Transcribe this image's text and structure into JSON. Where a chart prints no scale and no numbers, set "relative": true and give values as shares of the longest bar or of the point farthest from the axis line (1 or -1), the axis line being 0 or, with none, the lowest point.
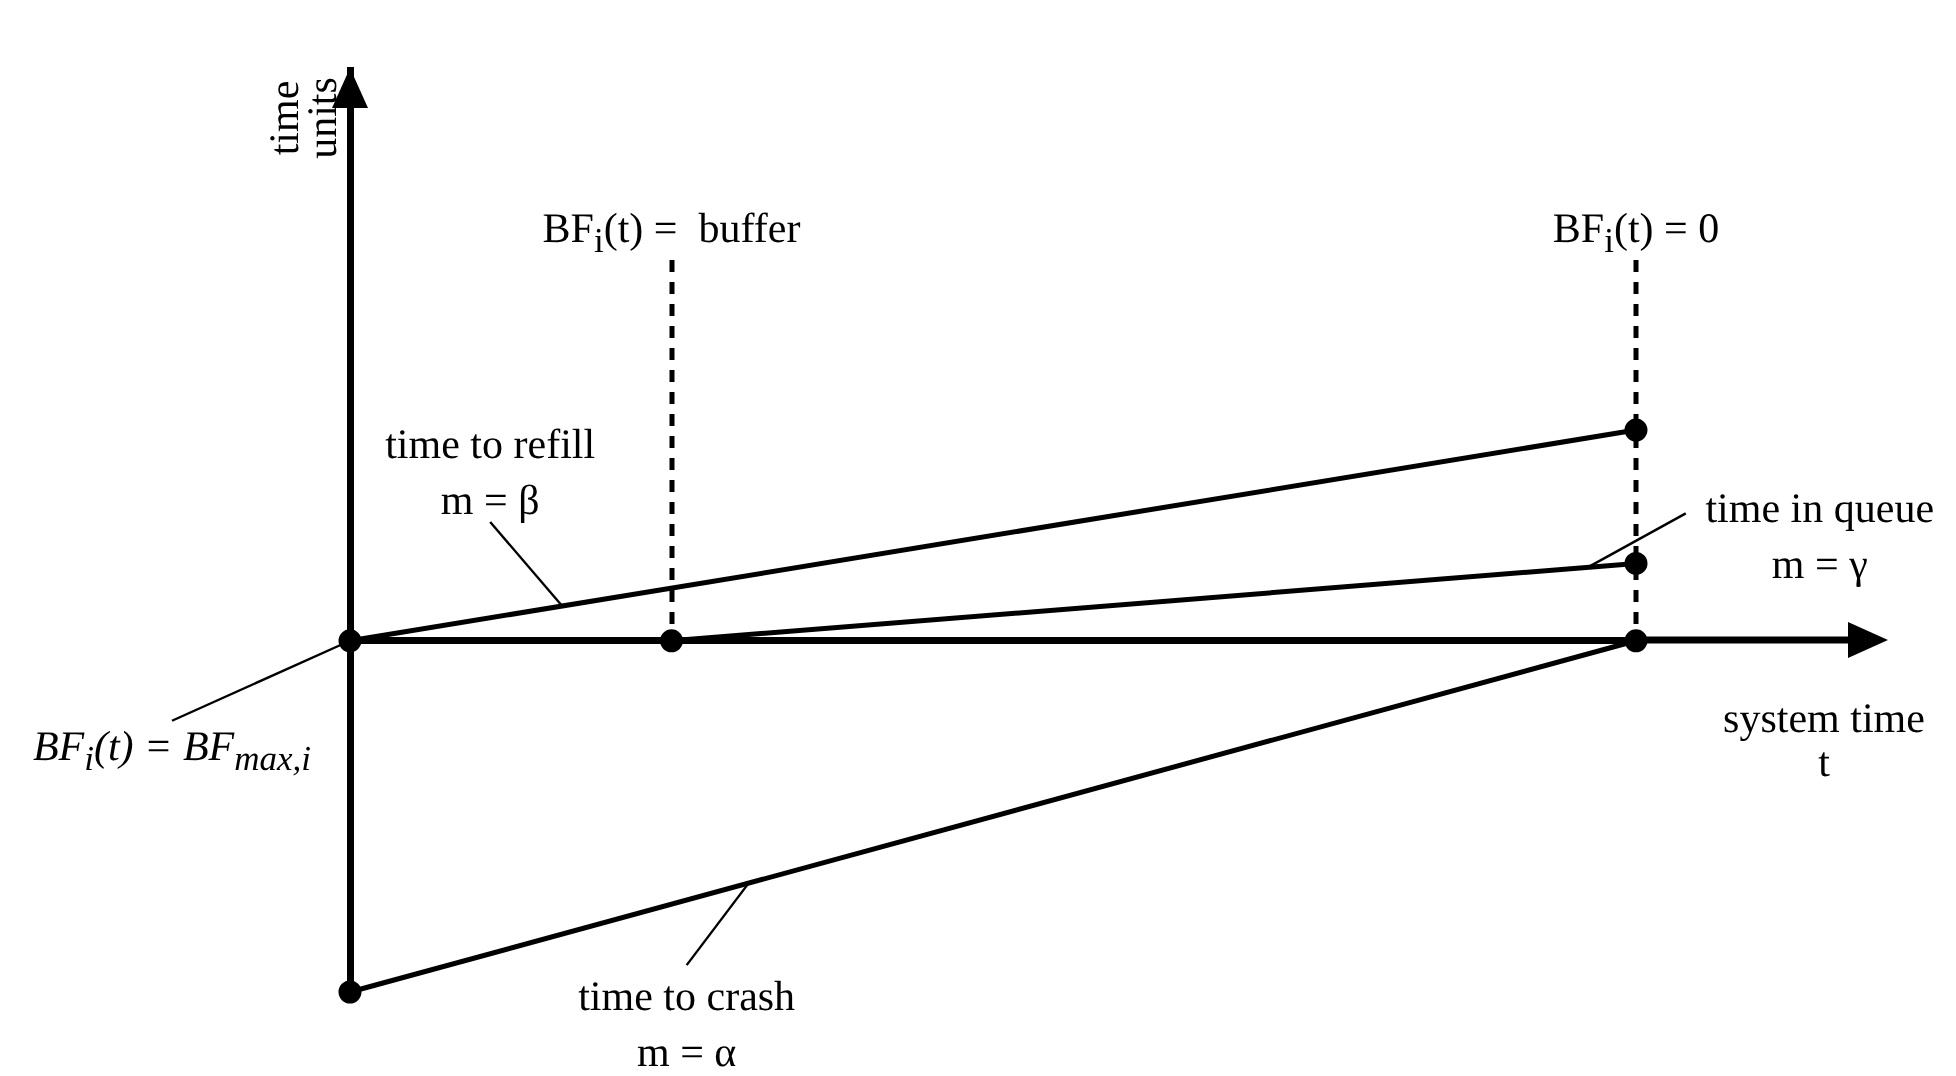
{
  "chart_data": {
    "type": "line",
    "relative": true,
    "marker": "circle",
    "line_style": "solid",
    "xlabel": "system time\nt",
    "categories": [
      null,
      null,
      null,
      null,
      null
    ],
    "series": [
      {
        "name": "time to refill\nm = β",
        "color": "#000000",
        "values": [
          0,
          null,
          null,
          null,
          0.6
        ]
      },
      {
        "name": "time in queue\nm = γ",
        "color": "#000000",
        "values": [
          null,
          0,
          null,
          null,
          0.22
        ]
      },
      {
        "name": "time to crash\nm = α",
        "color": "#000000",
        "values": [
          -1,
          null,
          null,
          null,
          0
        ]
      }
    ],
    "annotations": [
      "BF$_{i}$(t) = BF$_{max,i}$",
      "time\nunits",
      "BF$_{i}$(t) =  buffer",
      "BF$_{i}$(t) = 0"
    ]
  }
}
